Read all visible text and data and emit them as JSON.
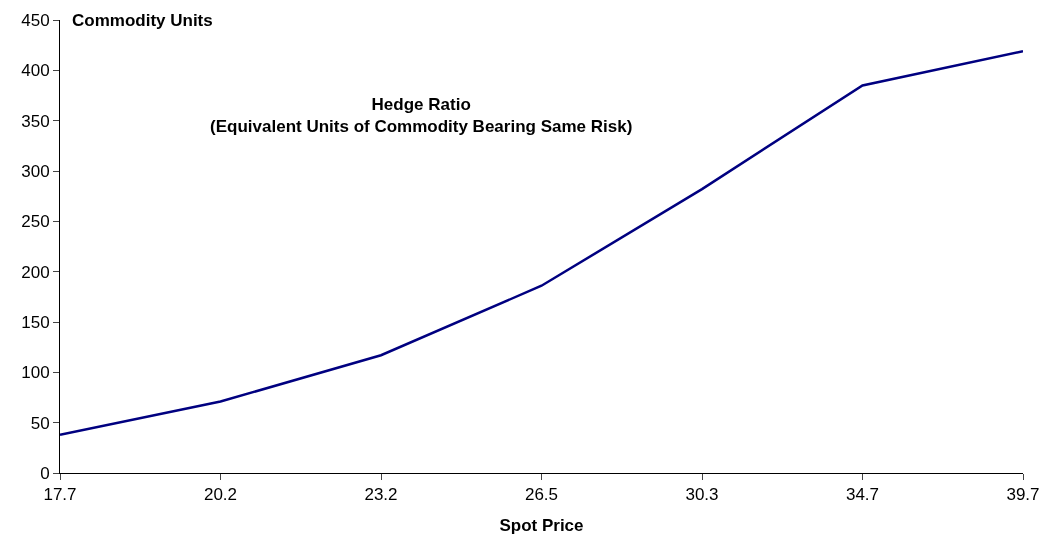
{
  "chart_data": {
    "type": "line",
    "title": "Hedge Ratio\n(Equivalent Units of Commodity Bearing Same Risk)",
    "ylabel": "Commodity Units",
    "xlabel": "Spot Price",
    "categories": [
      "17.7",
      "20.2",
      "23.2",
      "26.5",
      "30.3",
      "34.7",
      "39.7"
    ],
    "series": [
      {
        "color": "#000080",
        "values": [
          38,
          71,
          117,
          186,
          282,
          385,
          419
        ]
      }
    ],
    "ylim": [
      0,
      450
    ],
    "yticks": [
      0,
      50,
      100,
      150,
      200,
      250,
      300,
      350,
      400,
      450
    ],
    "line_style": "solid"
  }
}
